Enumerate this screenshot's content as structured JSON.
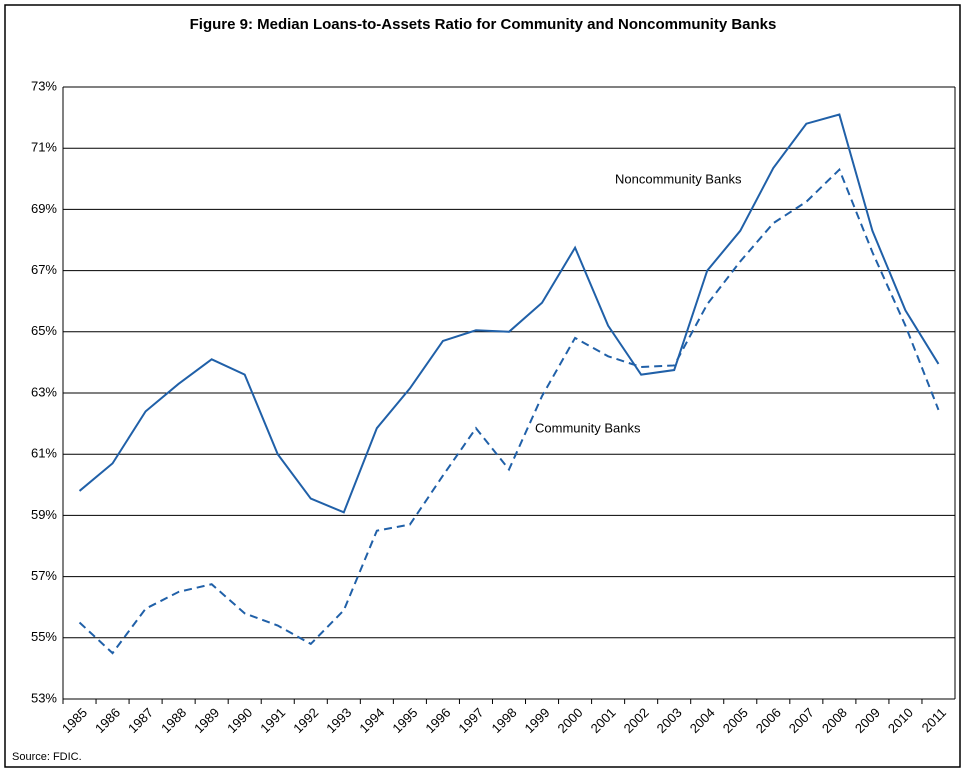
{
  "chart_data": {
    "type": "line",
    "title": "Figure 9: Median Loans-to-Assets Ratio for Community and Noncommunity Banks",
    "source": "Source: FDIC.",
    "categories": [
      "1985",
      "1986",
      "1987",
      "1988",
      "1989",
      "1990",
      "1991",
      "1992",
      "1993",
      "1994",
      "1995",
      "1996",
      "1997",
      "1998",
      "1999",
      "2000",
      "2001",
      "2002",
      "2003",
      "2004",
      "2005",
      "2006",
      "2007",
      "2008",
      "2009",
      "2010",
      "2011"
    ],
    "series": [
      {
        "name": "Noncommunity Banks",
        "color": "#2060a8",
        "line_style": "solid",
        "values": [
          59.8,
          60.7,
          62.4,
          63.3,
          64.1,
          63.6,
          61.0,
          59.55,
          59.1,
          61.85,
          63.15,
          64.7,
          65.05,
          65.0,
          65.95,
          67.75,
          65.2,
          63.6,
          63.75,
          67.0,
          68.3,
          70.35,
          71.8,
          72.1,
          68.3,
          65.7,
          63.95
        ]
      },
      {
        "name": "Community Banks",
        "color": "#2060a8",
        "line_style": "dashed",
        "values": [
          55.5,
          54.5,
          55.95,
          56.5,
          56.75,
          55.8,
          55.4,
          54.8,
          55.9,
          58.5,
          58.7,
          60.3,
          61.85,
          60.5,
          62.9,
          64.8,
          64.2,
          63.85,
          63.9,
          65.9,
          67.3,
          68.55,
          69.25,
          70.3,
          67.6,
          65.2,
          62.45
        ]
      }
    ],
    "ylim": [
      53,
      73
    ],
    "yticks": [
      {
        "value": 53,
        "label": "53%"
      },
      {
        "value": 55,
        "label": "55%"
      },
      {
        "value": 57,
        "label": "57%"
      },
      {
        "value": 59,
        "label": "59%"
      },
      {
        "value": 61,
        "label": "61%"
      },
      {
        "value": 63,
        "label": "63%"
      },
      {
        "value": 65,
        "label": "65%"
      },
      {
        "value": 67,
        "label": "67%"
      },
      {
        "value": 69,
        "label": "69%"
      },
      {
        "value": 71,
        "label": "71%"
      },
      {
        "value": 73,
        "label": "73%"
      }
    ],
    "grid": true
  }
}
